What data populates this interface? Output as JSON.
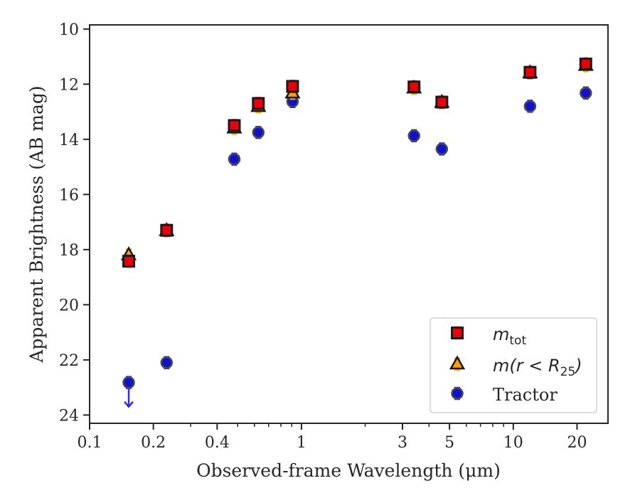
{
  "chart_data": {
    "type": "scatter",
    "xlabel": "Observed-frame Wavelength (μm)",
    "ylabel": "Apparent Brightness (AB mag)",
    "xscale": "log",
    "xlim": [
      0.1,
      28
    ],
    "ylim": [
      24.3,
      9.85
    ],
    "y_inverted": true,
    "grid": false,
    "x_major_ticks": [
      0.1,
      0.2,
      0.4,
      1,
      3,
      5,
      10,
      20
    ],
    "x_tick_labels": [
      "0.1",
      "0.2",
      "0.4",
      "1",
      "3",
      "5",
      "10",
      "20"
    ],
    "y_ticks": [
      10,
      12,
      14,
      16,
      18,
      20,
      22,
      24
    ],
    "y_tick_labels": [
      "10",
      "12",
      "14",
      "16",
      "18",
      "20",
      "22",
      "24"
    ],
    "legend": {
      "position": "lower-right"
    },
    "series": [
      {
        "name": "m_tot",
        "label_main": "m",
        "label_sub": "tot",
        "marker": "square",
        "color": "#e8000b",
        "errcolor": "#e8000b",
        "points": [
          {
            "x": 0.153,
            "y": 18.42
          },
          {
            "x": 0.231,
            "y": 17.3
          },
          {
            "x": 0.482,
            "y": 13.5
          },
          {
            "x": 0.626,
            "y": 12.7
          },
          {
            "x": 0.908,
            "y": 12.08
          },
          {
            "x": 3.4,
            "y": 12.1
          },
          {
            "x": 4.6,
            "y": 12.65
          },
          {
            "x": 12.0,
            "y": 11.57
          },
          {
            "x": 22.0,
            "y": 11.27
          }
        ]
      },
      {
        "name": "m(r < R_25)",
        "label_main": "m(r < R",
        "label_sub": "25",
        "label_tail": ")",
        "marker": "triangle",
        "color": "#ff9f00",
        "errcolor": "#f5b400",
        "points": [
          {
            "x": 0.153,
            "y": 18.2
          },
          {
            "x": 0.231,
            "y": 17.32
          },
          {
            "x": 0.482,
            "y": 13.6
          },
          {
            "x": 0.626,
            "y": 12.82
          },
          {
            "x": 0.908,
            "y": 12.33
          },
          {
            "x": 3.4,
            "y": 12.15
          },
          {
            "x": 4.6,
            "y": 12.67
          },
          {
            "x": 12.0,
            "y": 11.6
          },
          {
            "x": 22.0,
            "y": 11.33
          }
        ]
      },
      {
        "name": "Tractor",
        "marker": "circle",
        "color": "#1010d0",
        "errcolor": "#2a2aff",
        "points": [
          {
            "x": 0.153,
            "y": 22.82,
            "upper_limit": true
          },
          {
            "x": 0.231,
            "y": 22.1
          },
          {
            "x": 0.482,
            "y": 14.72
          },
          {
            "x": 0.626,
            "y": 13.75
          },
          {
            "x": 0.908,
            "y": 12.63
          },
          {
            "x": 3.4,
            "y": 13.87
          },
          {
            "x": 4.6,
            "y": 14.35
          },
          {
            "x": 12.0,
            "y": 12.8
          },
          {
            "x": 22.0,
            "y": 12.32
          }
        ]
      }
    ]
  }
}
